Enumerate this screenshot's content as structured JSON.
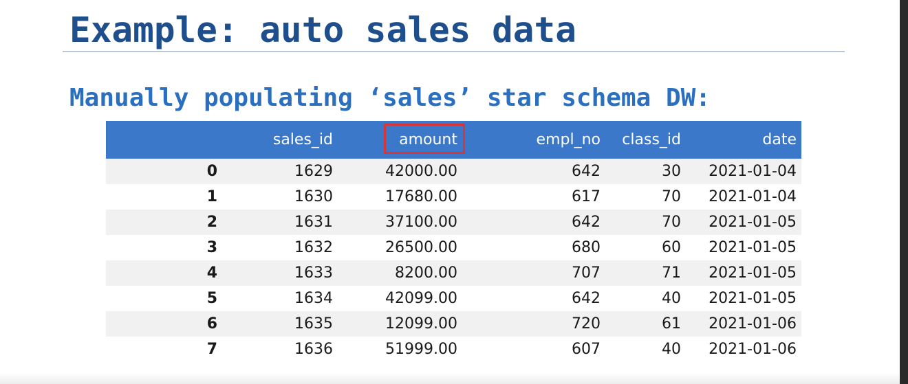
{
  "slide": {
    "title": "Example: auto sales data",
    "subtitle": "Manually populating ‘sales’ star schema DW:"
  },
  "table": {
    "columns": [
      "",
      "sales_id",
      "amount",
      "empl_no",
      "class_id",
      "date"
    ],
    "highlighted_column": "amount",
    "highlight_color": "#d6363a",
    "header_color": "#3b78c9",
    "rows": [
      {
        "index": "0",
        "sales_id": "1629",
        "amount": "42000.00",
        "empl_no": "642",
        "class_id": "30",
        "date": "2021-01-04"
      },
      {
        "index": "1",
        "sales_id": "1630",
        "amount": "17680.00",
        "empl_no": "617",
        "class_id": "70",
        "date": "2021-01-04"
      },
      {
        "index": "2",
        "sales_id": "1631",
        "amount": "37100.00",
        "empl_no": "642",
        "class_id": "70",
        "date": "2021-01-05"
      },
      {
        "index": "3",
        "sales_id": "1632",
        "amount": "26500.00",
        "empl_no": "680",
        "class_id": "60",
        "date": "2021-01-05"
      },
      {
        "index": "4",
        "sales_id": "1633",
        "amount": "8200.00",
        "empl_no": "707",
        "class_id": "71",
        "date": "2021-01-05"
      },
      {
        "index": "5",
        "sales_id": "1634",
        "amount": "42099.00",
        "empl_no": "642",
        "class_id": "40",
        "date": "2021-01-05"
      },
      {
        "index": "6",
        "sales_id": "1635",
        "amount": "12099.00",
        "empl_no": "720",
        "class_id": "61",
        "date": "2021-01-06"
      },
      {
        "index": "7",
        "sales_id": "1636",
        "amount": "51999.00",
        "empl_no": "607",
        "class_id": "40",
        "date": "2021-01-06"
      }
    ]
  }
}
